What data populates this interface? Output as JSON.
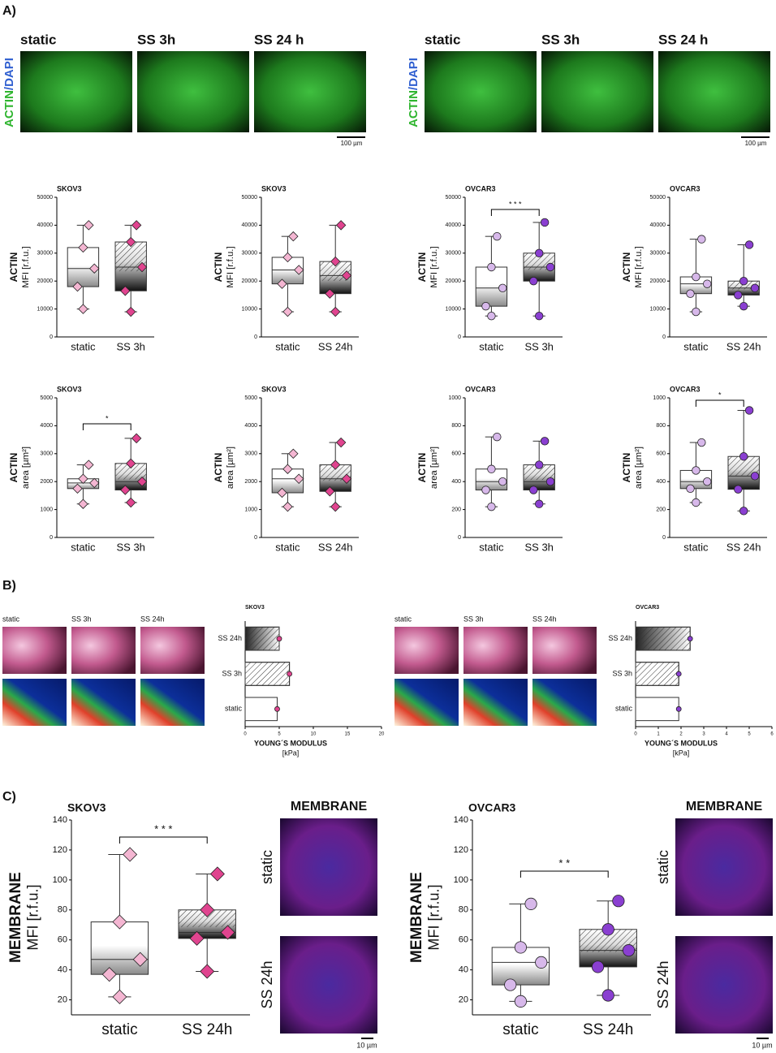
{
  "labels": {
    "panels": [
      "A)",
      "B)",
      "C)"
    ],
    "a_conditions_left": [
      "static",
      "SS 3h",
      "SS 24 h"
    ],
    "a_conditions_right": [
      "static",
      "SS 3h",
      "SS 24 h"
    ],
    "stain_actin": "ACTIN",
    "stain_slash": "/",
    "stain_dapi": "DAPI",
    "scale_a": [
      "100 µm",
      "100 µm"
    ],
    "b_conditions_left": [
      "static",
      "SS 3h",
      "SS 24h"
    ],
    "b_conditions_right": [
      "static",
      "SS 3h",
      "SS 24h"
    ],
    "membrane": [
      "MEMBRANE",
      "MEMBRANE"
    ],
    "c_conditions_left": [
      "static",
      "SS 24h"
    ],
    "c_conditions_right": [
      "static",
      "SS 24h"
    ],
    "scale_c": [
      "10 µm",
      "10 µm"
    ]
  },
  "chart_data": [
    {
      "type": "box",
      "title": "SKOV3",
      "ylabel": [
        "ACTIN",
        "MFI [r.f.u.]"
      ],
      "categories": [
        "static",
        "SS 3h"
      ],
      "boxes": [
        {
          "min": 10000,
          "q1": 18000,
          "median": 24500,
          "q3": 32000,
          "max": 40000
        },
        {
          "min": 9000,
          "q1": 16500,
          "median": 25000,
          "q3": 34000,
          "max": 40000
        }
      ],
      "colors": [
        "#f4b6d2",
        "#e0448f"
      ],
      "marker": "diamond",
      "ylim": [
        0,
        50000
      ],
      "yticks": [
        0,
        10000,
        20000,
        30000,
        40000,
        50000
      ]
    },
    {
      "type": "box",
      "title": "SKOV3",
      "ylabel": [
        "ACTIN",
        "MFI [r.f.u.]"
      ],
      "categories": [
        "static",
        "SS 24h"
      ],
      "boxes": [
        {
          "min": 9000,
          "q1": 19000,
          "median": 24000,
          "q3": 28500,
          "max": 36000
        },
        {
          "min": 9000,
          "q1": 15500,
          "median": 22000,
          "q3": 27000,
          "max": 40000
        }
      ],
      "colors": [
        "#f4b6d2",
        "#e0448f"
      ],
      "marker": "diamond",
      "ylim": [
        0,
        50000
      ],
      "yticks": [
        0,
        10000,
        20000,
        30000,
        40000,
        50000
      ]
    },
    {
      "type": "box",
      "title": "OVCAR3",
      "ylabel": [
        "ACTIN",
        "MFI [r.f.u.]"
      ],
      "categories": [
        "static",
        "SS 3h"
      ],
      "boxes": [
        {
          "min": 7500,
          "q1": 11000,
          "median": 17500,
          "q3": 25000,
          "max": 36000
        },
        {
          "min": 7500,
          "q1": 20000,
          "median": 25000,
          "q3": 30000,
          "max": 41000
        }
      ],
      "colors": [
        "#d7b8ea",
        "#8a3fd1"
      ],
      "marker": "circle",
      "annotation": "* * *",
      "ylim": [
        0,
        50000
      ],
      "yticks": [
        0,
        10000,
        20000,
        30000,
        40000,
        50000
      ]
    },
    {
      "type": "box",
      "title": "OVCAR3",
      "ylabel": [
        "ACTIN",
        "MFI [r.f.u.]"
      ],
      "categories": [
        "static",
        "SS 24h"
      ],
      "boxes": [
        {
          "min": 9000,
          "q1": 15500,
          "median": 19000,
          "q3": 21500,
          "max": 35000
        },
        {
          "min": 11000,
          "q1": 15000,
          "median": 17500,
          "q3": 20000,
          "max": 33000
        }
      ],
      "colors": [
        "#d7b8ea",
        "#8a3fd1"
      ],
      "marker": "circle",
      "ylim": [
        0,
        50000
      ],
      "yticks": [
        0,
        10000,
        20000,
        30000,
        40000,
        50000
      ]
    },
    {
      "type": "box",
      "title": "SKOV3",
      "ylabel": [
        "ACTIN",
        "area [µm²]"
      ],
      "categories": [
        "static",
        "SS 3h"
      ],
      "boxes": [
        {
          "min": 1200,
          "q1": 1750,
          "median": 1950,
          "q3": 2100,
          "max": 2600
        },
        {
          "min": 1250,
          "q1": 1700,
          "median": 2000,
          "q3": 2650,
          "max": 3550
        }
      ],
      "colors": [
        "#f4b6d2",
        "#e0448f"
      ],
      "marker": "diamond",
      "annotation": "*",
      "ylim": [
        0,
        5000
      ],
      "yticks": [
        0,
        1000,
        2000,
        3000,
        4000,
        5000
      ]
    },
    {
      "type": "box",
      "title": "SKOV3",
      "ylabel": [
        "ACTIN",
        "area [µm²]"
      ],
      "categories": [
        "static",
        "SS 24h"
      ],
      "boxes": [
        {
          "min": 1100,
          "q1": 1600,
          "median": 2100,
          "q3": 2450,
          "max": 3000
        },
        {
          "min": 1100,
          "q1": 1650,
          "median": 2100,
          "q3": 2600,
          "max": 3400
        }
      ],
      "colors": [
        "#f4b6d2",
        "#e0448f"
      ],
      "marker": "diamond",
      "ylim": [
        0,
        5000
      ],
      "yticks": [
        0,
        1000,
        2000,
        3000,
        4000,
        5000
      ]
    },
    {
      "type": "box",
      "title": "OVCAR3",
      "ylabel": [
        "ACTIN",
        "area [µm²]"
      ],
      "categories": [
        "static",
        "SS 3h"
      ],
      "boxes": [
        {
          "min": 220,
          "q1": 340,
          "median": 400,
          "q3": 490,
          "max": 720
        },
        {
          "min": 240,
          "q1": 340,
          "median": 400,
          "q3": 520,
          "max": 690
        }
      ],
      "colors": [
        "#d7b8ea",
        "#8a3fd1"
      ],
      "marker": "circle",
      "ylim": [
        0,
        1000
      ],
      "yticks": [
        0,
        200,
        400,
        600,
        800,
        1000
      ]
    },
    {
      "type": "box",
      "title": "OVCAR3",
      "ylabel": [
        "ACTIN",
        "area [µm²]"
      ],
      "categories": [
        "static",
        "SS 24h"
      ],
      "boxes": [
        {
          "min": 250,
          "q1": 350,
          "median": 400,
          "q3": 480,
          "max": 680
        },
        {
          "min": 190,
          "q1": 345,
          "median": 440,
          "q3": 580,
          "max": 910
        }
      ],
      "colors": [
        "#d7b8ea",
        "#8a3fd1"
      ],
      "marker": "circle",
      "annotation": "*",
      "ylim": [
        0,
        1000
      ],
      "yticks": [
        0,
        200,
        400,
        600,
        800,
        1000
      ]
    },
    {
      "type": "hbar",
      "title": "SKOV3",
      "xlabel": [
        "YOUNG´S MODULUS",
        "[kPa]"
      ],
      "categories": [
        "SS 24h",
        "SS 3h",
        "static"
      ],
      "values": [
        5,
        6.5,
        4.7
      ],
      "color": "#e0448f",
      "xlim": [
        0,
        20
      ],
      "xticks": [
        0,
        5,
        10,
        15,
        20
      ]
    },
    {
      "type": "hbar",
      "title": "OVCAR3",
      "xlabel": [
        "YOUNG´S MODULUS",
        "[kPa]"
      ],
      "categories": [
        "SS 24h",
        "SS 3h",
        "static"
      ],
      "values": [
        2.4,
        1.9,
        1.9
      ],
      "color": "#8a3fd1",
      "xlim": [
        0,
        6
      ],
      "xticks": [
        0,
        1,
        2,
        3,
        4,
        5,
        6
      ]
    },
    {
      "type": "box",
      "title": "SKOV3",
      "ylabel": [
        "MEMBRANE",
        "MFI [r.f.u.]"
      ],
      "categories": [
        "static",
        "SS 24h"
      ],
      "boxes": [
        {
          "min": 22,
          "q1": 37,
          "median": 47,
          "q3": 72,
          "max": 117
        },
        {
          "min": 39,
          "q1": 61,
          "median": 65,
          "q3": 80,
          "max": 104
        }
      ],
      "colors": [
        "#f4b6d2",
        "#e0448f"
      ],
      "marker": "diamond",
      "annotation": "* * *",
      "ylim": [
        10,
        140
      ],
      "yticks": [
        20,
        40,
        60,
        80,
        100,
        120,
        140
      ]
    },
    {
      "type": "box",
      "title": "OVCAR3",
      "ylabel": [
        "MEMBRANE",
        "MFI [r.f.u.]"
      ],
      "categories": [
        "static",
        "SS 24h"
      ],
      "boxes": [
        {
          "min": 19,
          "q1": 30,
          "median": 45,
          "q3": 55,
          "max": 84
        },
        {
          "min": 23,
          "q1": 42,
          "median": 53,
          "q3": 67,
          "max": 86
        }
      ],
      "colors": [
        "#d7b8ea",
        "#8a3fd1"
      ],
      "marker": "circle",
      "annotation": "* *",
      "ylim": [
        10,
        140
      ],
      "yticks": [
        20,
        40,
        60,
        80,
        100,
        120,
        140
      ]
    }
  ]
}
